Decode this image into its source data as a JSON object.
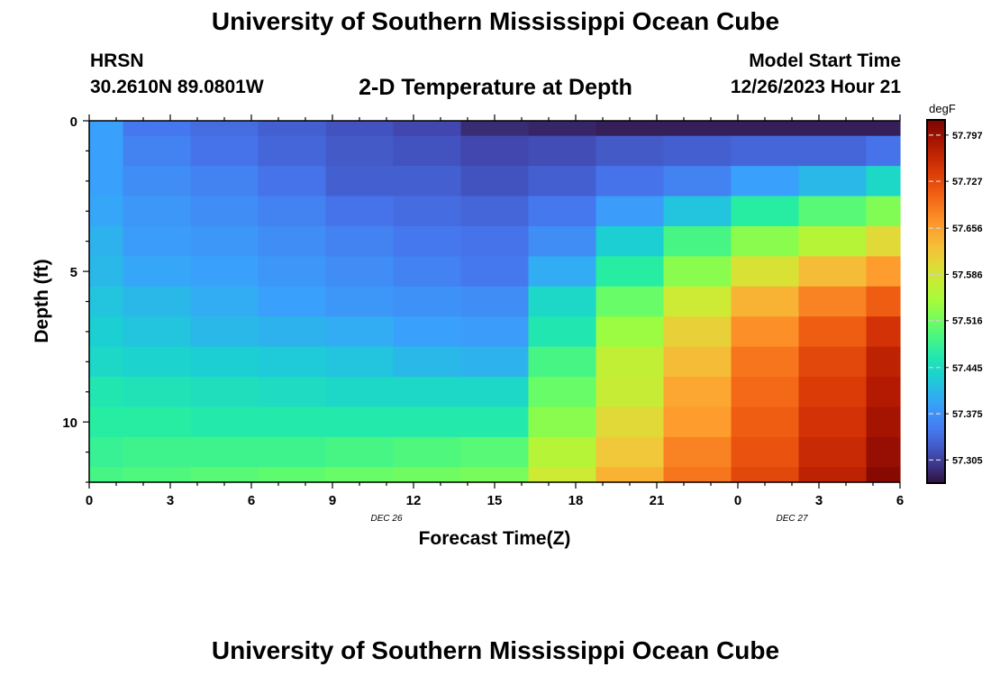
{
  "header": {
    "title": "University of Southern Mississippi Ocean Cube",
    "station": "HRSN",
    "coords": "30.2610N  89.0801W",
    "subtitle": "2-D Temperature at Depth",
    "model_start_label": "Model Start Time",
    "model_start_value": "12/26/2023 Hour 21",
    "footer_title": "University of Southern Mississippi Ocean Cube"
  },
  "chart_data": {
    "type": "heatmap",
    "title": "2-D Temperature at Depth",
    "xlabel": "Forecast Time(Z)",
    "ylabel": "Depth (ft)",
    "x_tick_labels": [
      "0",
      "3",
      "6",
      "9",
      "12",
      "15",
      "18",
      "21",
      "0",
      "3",
      "6"
    ],
    "x_range_hours": [
      0,
      30
    ],
    "x_day_labels": [
      {
        "label": "DEC 26",
        "hour": 11
      },
      {
        "label": "DEC 27",
        "hour": 26
      }
    ],
    "y_tick_labels": [
      "0",
      "5",
      "10"
    ],
    "y_range_ft": [
      0,
      12
    ],
    "colorbar": {
      "unit": "degF",
      "min": 57.27,
      "max": 57.82,
      "tick_values": [
        57.797,
        57.727,
        57.656,
        57.586,
        57.516,
        57.445,
        57.375,
        57.305
      ],
      "tick_labels": [
        "57.797",
        "57.727",
        "57.656",
        "57.586",
        "57.516",
        "57.445",
        "57.375",
        "57.305"
      ]
    },
    "column_hours": [
      0,
      1.25,
      3.75,
      6.25,
      8.75,
      11.25,
      13.75,
      16.25,
      18.75,
      21.25,
      23.75,
      26.25,
      28.75,
      30
    ],
    "row_depths_ft": [
      0,
      0.5,
      1.5,
      2.5,
      3.5,
      4.5,
      5.5,
      6.5,
      7.5,
      8.5,
      9.5,
      10.5,
      11.5,
      12
    ],
    "values": [
      [
        57.39,
        57.35,
        57.34,
        57.33,
        57.32,
        57.31,
        57.29,
        57.285,
        57.28,
        57.28,
        57.28,
        57.28,
        57.28
      ],
      [
        57.39,
        57.36,
        57.345,
        57.335,
        57.325,
        57.32,
        57.31,
        57.315,
        57.325,
        57.33,
        57.335,
        57.335,
        57.345
      ],
      [
        57.39,
        57.37,
        57.36,
        57.345,
        57.33,
        57.33,
        57.32,
        57.33,
        57.345,
        57.36,
        57.39,
        57.41,
        57.44
      ],
      [
        57.395,
        57.38,
        57.37,
        57.36,
        57.345,
        57.34,
        57.335,
        57.35,
        57.385,
        57.42,
        57.47,
        57.5,
        57.525
      ],
      [
        57.405,
        57.385,
        57.38,
        57.37,
        57.36,
        57.35,
        57.345,
        57.37,
        57.43,
        57.49,
        57.53,
        57.56,
        57.6
      ],
      [
        57.41,
        57.395,
        57.39,
        57.38,
        57.37,
        57.36,
        57.35,
        57.4,
        57.47,
        57.53,
        57.59,
        57.63,
        57.66
      ],
      [
        57.42,
        57.41,
        57.4,
        57.39,
        57.38,
        57.375,
        57.37,
        57.44,
        57.51,
        57.58,
        57.64,
        57.68,
        57.71
      ],
      [
        57.43,
        57.42,
        57.41,
        57.405,
        57.4,
        57.39,
        57.385,
        57.46,
        57.54,
        57.61,
        57.67,
        57.71,
        57.75
      ],
      [
        57.44,
        57.435,
        57.43,
        57.425,
        57.42,
        57.41,
        57.405,
        57.49,
        57.57,
        57.63,
        57.69,
        57.73,
        57.77
      ],
      [
        57.46,
        57.455,
        57.45,
        57.445,
        57.44,
        57.44,
        57.44,
        57.51,
        57.575,
        57.65,
        57.7,
        57.74,
        57.78
      ],
      [
        57.47,
        57.47,
        57.465,
        57.465,
        57.465,
        57.465,
        57.465,
        57.53,
        57.6,
        57.66,
        57.71,
        57.75,
        57.79
      ],
      [
        57.48,
        57.485,
        57.485,
        57.485,
        57.49,
        57.495,
        57.5,
        57.56,
        57.62,
        57.68,
        57.72,
        57.76,
        57.8
      ],
      [
        57.49,
        57.495,
        57.5,
        57.505,
        57.51,
        57.515,
        57.52,
        57.58,
        57.64,
        57.69,
        57.73,
        57.77,
        57.81
      ]
    ]
  }
}
